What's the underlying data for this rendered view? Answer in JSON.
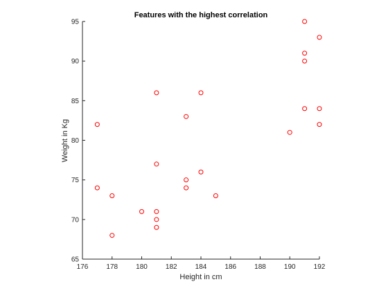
{
  "chart_data": {
    "type": "scatter",
    "title": "Features with the highest correlation",
    "xlabel": "Height in cm",
    "ylabel": "Weight in Kg",
    "xlim": [
      176,
      192
    ],
    "ylim": [
      65,
      95
    ],
    "xticks": [
      "176",
      "178",
      "180",
      "182",
      "184",
      "186",
      "188",
      "190",
      "192"
    ],
    "yticks": [
      "65",
      "70",
      "75",
      "80",
      "85",
      "90",
      "95"
    ],
    "grid": false,
    "marker": "circle-open",
    "marker_color": "#ff0000",
    "series": [
      {
        "points": [
          {
            "x": 177,
            "y": 82
          },
          {
            "x": 177,
            "y": 74
          },
          {
            "x": 178,
            "y": 73
          },
          {
            "x": 178,
            "y": 68
          },
          {
            "x": 180,
            "y": 71
          },
          {
            "x": 181,
            "y": 86
          },
          {
            "x": 181,
            "y": 77
          },
          {
            "x": 181,
            "y": 71
          },
          {
            "x": 181,
            "y": 70
          },
          {
            "x": 181,
            "y": 69
          },
          {
            "x": 183,
            "y": 83
          },
          {
            "x": 183,
            "y": 75
          },
          {
            "x": 183,
            "y": 74
          },
          {
            "x": 184,
            "y": 86
          },
          {
            "x": 184,
            "y": 76
          },
          {
            "x": 185,
            "y": 73
          },
          {
            "x": 190,
            "y": 81
          },
          {
            "x": 191,
            "y": 95
          },
          {
            "x": 191,
            "y": 91
          },
          {
            "x": 191,
            "y": 90
          },
          {
            "x": 191,
            "y": 84
          },
          {
            "x": 192,
            "y": 93
          },
          {
            "x": 192,
            "y": 84
          },
          {
            "x": 192,
            "y": 82
          }
        ]
      }
    ]
  }
}
